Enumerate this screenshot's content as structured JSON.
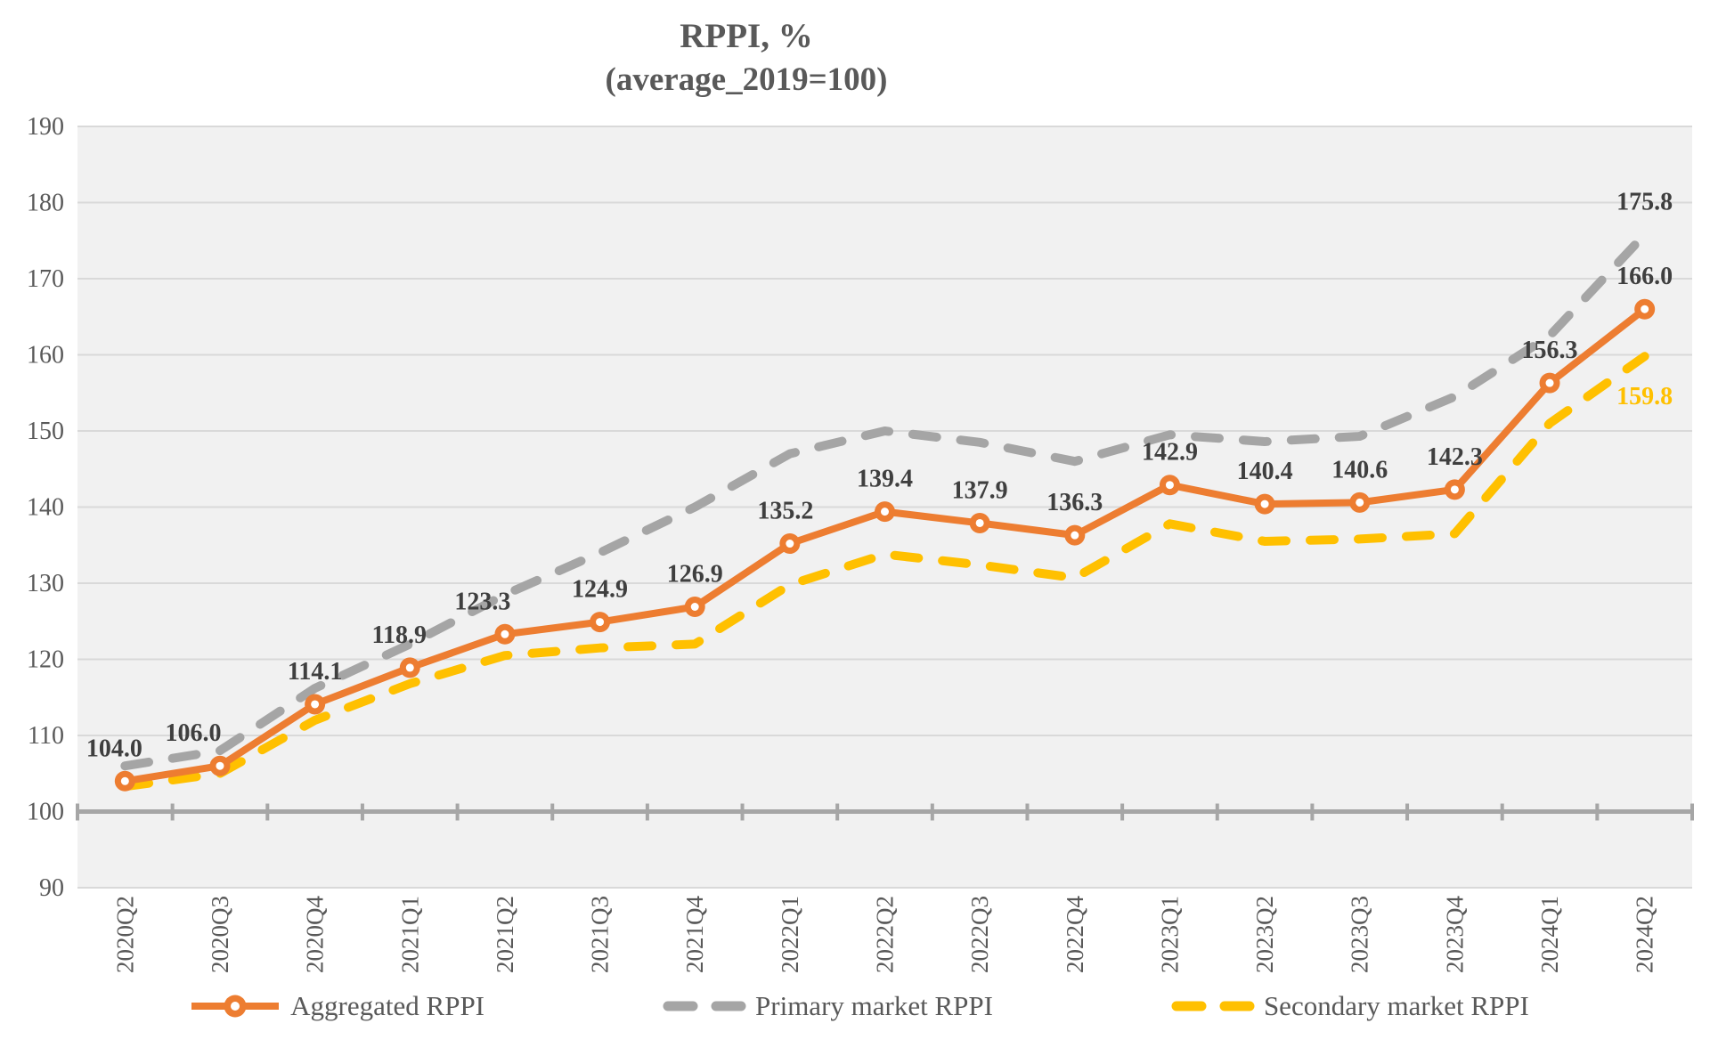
{
  "title": {
    "line1": "RPPI, %",
    "line2": "(average_2019=100)"
  },
  "chart_data": {
    "type": "line",
    "title": "RPPI, % (average_2019=100)",
    "categories": [
      "2020Q2",
      "2020Q3",
      "2020Q4",
      "2021Q1",
      "2021Q2",
      "2021Q3",
      "2021Q4",
      "2022Q1",
      "2022Q2",
      "2022Q3",
      "2022Q4",
      "2023Q1",
      "2023Q2",
      "2023Q3",
      "2023Q4",
      "2024Q1",
      "2024Q2"
    ],
    "series": [
      {
        "name": "Aggregated RPPI",
        "color": "#ED7D31",
        "style": "solid",
        "marker": true,
        "show_labels": "all",
        "label_color": "#3F3F3F",
        "label_dx": [
          -12,
          -30,
          0,
          -12,
          -25,
          0,
          0,
          -5,
          0,
          0,
          0,
          0,
          0,
          0,
          0,
          0,
          0
        ],
        "values": [
          104.0,
          106.0,
          114.1,
          118.9,
          123.3,
          124.9,
          126.9,
          135.2,
          139.4,
          137.9,
          136.3,
          142.9,
          140.4,
          140.6,
          142.3,
          156.3,
          166.0
        ]
      },
      {
        "name": "Primary market RPPI",
        "color": "#A5A5A5",
        "style": "dashed",
        "marker": false,
        "show_labels": "last",
        "label_color": "#3F3F3F",
        "values": [
          106.0,
          108.0,
          116.2,
          122.0,
          128.5,
          134.0,
          140.0,
          147.0,
          150.0,
          148.5,
          146.0,
          149.5,
          148.6,
          149.3,
          154.5,
          162.5,
          175.8
        ]
      },
      {
        "name": "Secondary market RPPI",
        "color": "#FFC000",
        "style": "dashed",
        "marker": false,
        "show_labels": "last",
        "label_color": "#FFC000",
        "last_label_below": true,
        "values": [
          103.3,
          105.0,
          112.0,
          116.8,
          120.5,
          121.5,
          122.0,
          129.8,
          133.8,
          132.4,
          130.7,
          137.8,
          135.5,
          135.8,
          136.5,
          151.0,
          159.8
        ]
      }
    ],
    "ylim": [
      90,
      190
    ],
    "ytick_step": 10,
    "baseline_value": 100,
    "grid": true,
    "legend_position": "bottom",
    "colors": {
      "plot_background": "#F1F1F1",
      "gridline": "#D9D9D9",
      "axis_line": "#A6A6A6",
      "tick_text": "#595959",
      "title_text": "#595959"
    }
  }
}
